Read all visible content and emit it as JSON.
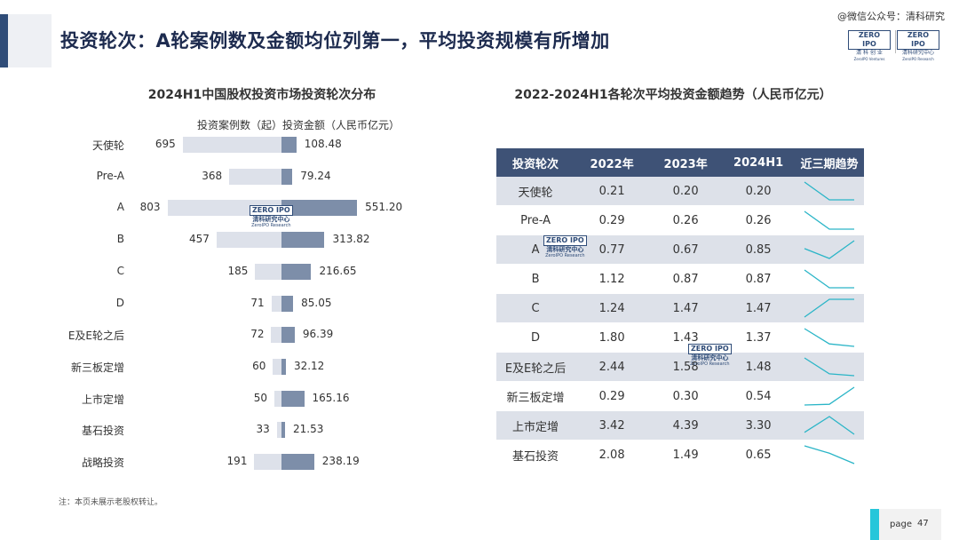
{
  "header": {
    "title": "投资轮次：A轮案例数及金额均位列第一，平均投资规模有所增加",
    "wechat": "@微信公众号：清科研究",
    "logo1": {
      "word": "ZERO IPO",
      "sub": "清 科 创 业",
      "sub2": "ZeroIPO Ventures"
    },
    "logo2": {
      "word": "ZERO IPO",
      "sub": "清科研究中心",
      "sub2": "ZeroIPO Research"
    }
  },
  "watermark": {
    "word": "ZERO IPO",
    "text": "清科研究中心",
    "sub": "ZeroIPO Research"
  },
  "colors": {
    "count_bar": "#dde1ea",
    "amount_bar": "#7d8ea9",
    "table_header": "#3e5276",
    "sparkline": "#2ab5c7",
    "accent": "#26c6da"
  },
  "chart_data": [
    {
      "type": "bar",
      "title": "2024H1中国股权投资市场投资轮次分布",
      "legend": "投资案例数（起）投资金额（人民币亿元）",
      "categories": [
        "天使轮",
        "Pre-A",
        "A",
        "B",
        "C",
        "D",
        "E及E轮之后",
        "新三板定增",
        "上市定增",
        "基石投资",
        "战略投资"
      ],
      "series": [
        {
          "name": "投资案例数（起）",
          "values": [
            695,
            368,
            803,
            457,
            185,
            71,
            72,
            60,
            50,
            33,
            191
          ]
        },
        {
          "name": "投资金额（人民币亿元）",
          "values": [
            108.48,
            79.24,
            551.2,
            313.82,
            216.65,
            85.05,
            96.39,
            32.12,
            165.16,
            21.53,
            238.19
          ]
        }
      ]
    },
    {
      "type": "table",
      "title": "2022-2024H1各轮次平均投资金额趋势（人民币亿元）",
      "columns": [
        "投资轮次",
        "2022年",
        "2023年",
        "2024H1",
        "近三期趋势"
      ],
      "rows": [
        {
          "label": "天使轮",
          "values": [
            "0.21",
            "0.20",
            "0.20"
          ]
        },
        {
          "label": "Pre-A",
          "values": [
            "0.29",
            "0.26",
            "0.26"
          ]
        },
        {
          "label": "A",
          "values": [
            "0.77",
            "0.67",
            "0.85"
          ]
        },
        {
          "label": "B",
          "values": [
            "1.12",
            "0.87",
            "0.87"
          ]
        },
        {
          "label": "C",
          "values": [
            "1.24",
            "1.47",
            "1.47"
          ]
        },
        {
          "label": "D",
          "values": [
            "1.80",
            "1.43",
            "1.37"
          ]
        },
        {
          "label": "E及E轮之后",
          "values": [
            "2.44",
            "1.58",
            "1.48"
          ]
        },
        {
          "label": "新三板定增",
          "values": [
            "0.29",
            "0.30",
            "0.54"
          ]
        },
        {
          "label": "上市定增",
          "values": [
            "3.42",
            "4.39",
            "3.30"
          ]
        },
        {
          "label": "基石投资",
          "values": [
            "2.08",
            "1.49",
            "0.65"
          ]
        }
      ]
    }
  ],
  "footnote": "注：本页未展示老股权转让。",
  "page": {
    "label": "page",
    "number": "47"
  }
}
